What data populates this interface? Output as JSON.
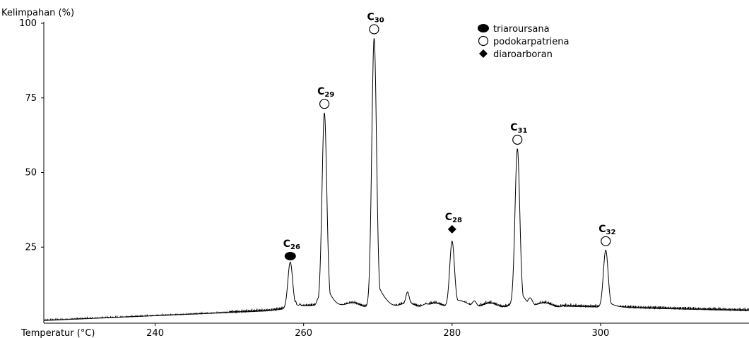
{
  "chart_data": {
    "type": "line",
    "ylabel": "Kelimpahan (%)",
    "xlabel": "Temperatur (°C)",
    "xlim": [
      225,
      320
    ],
    "ylim": [
      0,
      100
    ],
    "x_ticks": [
      240,
      260,
      280,
      300
    ],
    "y_ticks": [
      25,
      50,
      75,
      100
    ],
    "x_tick_labels": [
      "240",
      "260",
      "280",
      "300"
    ],
    "y_tick_labels": [
      "25",
      "50",
      "75",
      "100"
    ],
    "legend": [
      {
        "marker": "filled-ellipse",
        "label": "triaroursana"
      },
      {
        "marker": "open-circle",
        "label": "podokarpatriena"
      },
      {
        "marker": "filled-diamond",
        "label": "diaroarboran"
      }
    ],
    "legend_position": "top-right",
    "peaks": [
      {
        "x": 258.2,
        "y": 20,
        "label_main": "C",
        "label_sub": "26",
        "marker": "filled-ellipse",
        "marker_y": 22
      },
      {
        "x": 262.8,
        "y": 70,
        "label_main": "C",
        "label_sub": "29",
        "marker": "open-circle",
        "marker_y": 73
      },
      {
        "x": 269.5,
        "y": 95,
        "label_main": "C",
        "label_sub": "30",
        "marker": "open-circle",
        "marker_y": 98
      },
      {
        "x": 280.0,
        "y": 27,
        "label_main": "C",
        "label_sub": "28",
        "marker": "filled-diamond",
        "marker_y": 31
      },
      {
        "x": 288.8,
        "y": 58,
        "label_main": "C",
        "label_sub": "31",
        "marker": "open-circle",
        "marker_y": 61
      },
      {
        "x": 300.7,
        "y": 24,
        "label_main": "C",
        "label_sub": "32",
        "marker": "open-circle",
        "marker_y": 27
      }
    ],
    "minor_peaks": [
      {
        "x": 240.0,
        "y": 2,
        "w": 0.3
      },
      {
        "x": 256.8,
        "y": 4,
        "w": 0.3
      },
      {
        "x": 258.9,
        "y": 7,
        "w": 0.2
      },
      {
        "x": 259.5,
        "y": 6,
        "w": 0.2
      },
      {
        "x": 260.2,
        "y": 5,
        "w": 0.2
      },
      {
        "x": 262.0,
        "y": 8,
        "w": 0.3
      },
      {
        "x": 271.2,
        "y": 7,
        "w": 0.5
      },
      {
        "x": 274.0,
        "y": 10,
        "w": 0.3
      },
      {
        "x": 276.5,
        "y": 6,
        "w": 0.6
      },
      {
        "x": 283.0,
        "y": 7,
        "w": 0.4
      },
      {
        "x": 290.5,
        "y": 8,
        "w": 0.5
      },
      {
        "x": 296.0,
        "y": 5,
        "w": 0.5
      }
    ]
  }
}
